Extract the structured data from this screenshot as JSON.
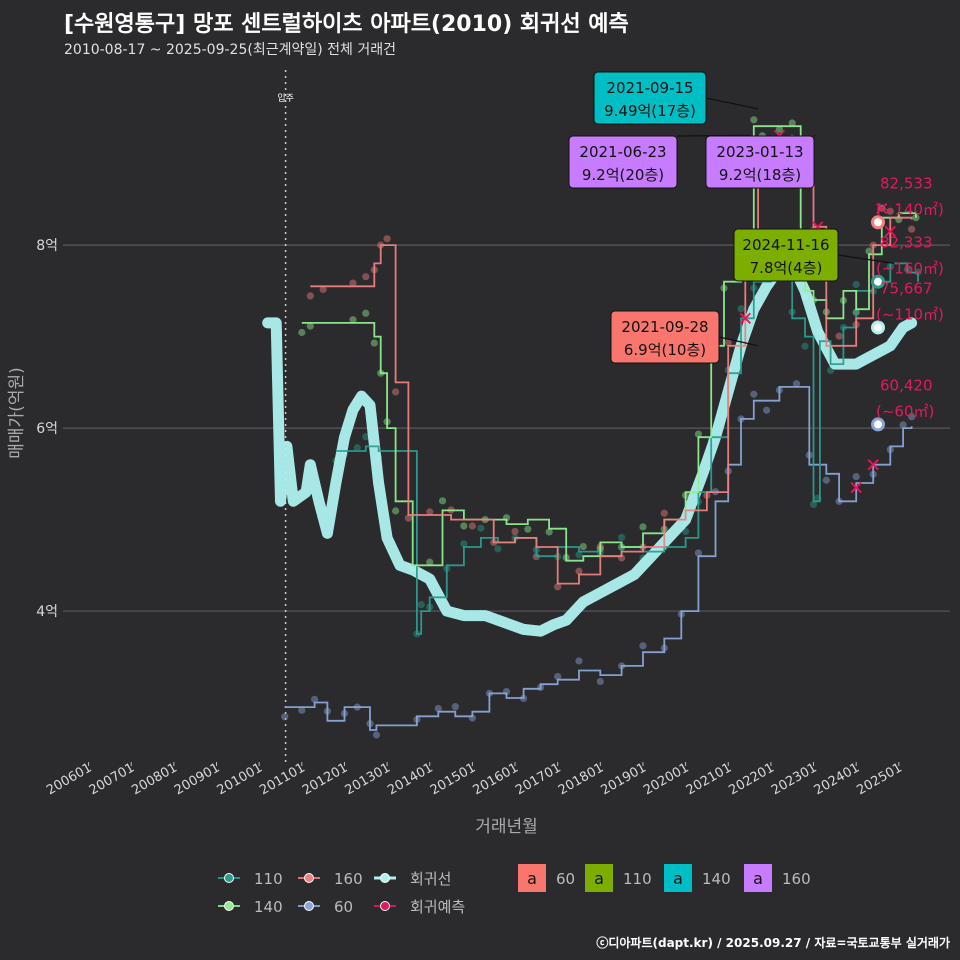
{
  "title": "[수원영통구] 망포 센트럴하이츠 아파트(2010) 회귀선 예측",
  "subtitle": "2010-08-17 ~ 2025-09-25(최근계약일) 전체 거래건",
  "credit": "ⓒ디아파트(dapt.kr) / 2025.09.27 / 자료=국토교통부 실거래가",
  "colors": {
    "bg": "#2b2b2d",
    "grid": "#5a5a5c",
    "s110": "#2a9d8f",
    "s140": "#90ee90",
    "s160": "#f08080",
    "s60": "#8aa6d8",
    "reg": "#aef2f0",
    "pred": "#e8175d",
    "lab60": "#f8766d",
    "lab110": "#7cae00",
    "lab140": "#00bfc4",
    "lab160": "#c77cff"
  },
  "chart_data": {
    "type": "line",
    "xlabel": "거래년월",
    "ylabel": "매매가(억원)",
    "xlim": [
      2005.4,
      2026.2
    ],
    "ylim": [
      2.35,
      9.98
    ],
    "x_ticks": [
      {
        "x": 2006.0,
        "label": "200601"
      },
      {
        "x": 2007.0,
        "label": "200701"
      },
      {
        "x": 2008.0,
        "label": "200801"
      },
      {
        "x": 2009.0,
        "label": "200901"
      },
      {
        "x": 2010.0,
        "label": "201001"
      },
      {
        "x": 2011.0,
        "label": "201101"
      },
      {
        "x": 2012.0,
        "label": "201201"
      },
      {
        "x": 2013.0,
        "label": "201301"
      },
      {
        "x": 2014.0,
        "label": "201401"
      },
      {
        "x": 2015.0,
        "label": "201501"
      },
      {
        "x": 2016.0,
        "label": "201601"
      },
      {
        "x": 2017.0,
        "label": "201701"
      },
      {
        "x": 2018.0,
        "label": "201801"
      },
      {
        "x": 2019.0,
        "label": "201901"
      },
      {
        "x": 2020.0,
        "label": "202001"
      },
      {
        "x": 2021.0,
        "label": "202101"
      },
      {
        "x": 2022.0,
        "label": "202201"
      },
      {
        "x": 2023.0,
        "label": "202301"
      },
      {
        "x": 2024.0,
        "label": "202401"
      },
      {
        "x": 2025.0,
        "label": "202501"
      }
    ],
    "y_ticks": [
      {
        "y": 4,
        "label": "4억"
      },
      {
        "y": 6,
        "label": "6억"
      },
      {
        "y": 8,
        "label": "8억"
      }
    ],
    "move_in": {
      "x": 2010.62,
      "label": "입주"
    },
    "series": [
      {
        "name": "60",
        "key": "s60",
        "x": [
          2010.6,
          2011.0,
          2011.3,
          2011.6,
          2012.0,
          2012.3,
          2012.6,
          2012.75,
          2013.7,
          2014.2,
          2014.6,
          2015.0,
          2015.4,
          2015.8,
          2016.2,
          2016.6,
          2017.0,
          2017.5,
          2018.0,
          2018.5,
          2019.0,
          2019.5,
          2019.9,
          2020.3,
          2020.7,
          2021.0,
          2021.3,
          2021.6,
          2021.9,
          2022.2,
          2022.6,
          2022.9,
          2023.3,
          2023.6,
          2024.0,
          2024.4,
          2024.8,
          2025.1,
          2025.3
        ],
        "values": [
          2.95,
          2.95,
          3.0,
          2.8,
          2.95,
          2.95,
          2.7,
          2.75,
          2.85,
          2.9,
          2.85,
          2.9,
          3.1,
          3.05,
          3.15,
          3.2,
          3.25,
          3.35,
          3.3,
          3.4,
          3.55,
          3.7,
          4.0,
          4.6,
          5.2,
          5.6,
          6.1,
          6.3,
          6.3,
          6.45,
          6.45,
          5.6,
          5.5,
          5.2,
          5.4,
          5.6,
          5.8,
          6.0,
          6.02
        ]
      },
      {
        "name": "110",
        "key": "s110",
        "x": [
          2011.8,
          2012.0,
          2012.3,
          2012.5,
          2012.8,
          2013.7,
          2013.8,
          2014.0,
          2014.4,
          2014.8,
          2015.2,
          2015.6,
          2016.0,
          2016.5,
          2017.0,
          2017.5,
          2018.0,
          2018.5,
          2019.0,
          2019.5,
          2020.0,
          2020.3,
          2020.6,
          2021.0,
          2021.3,
          2021.6,
          2022.0,
          2022.5,
          2022.8,
          2023.0,
          2023.1,
          2023.15,
          2023.4,
          2023.7,
          2024.0,
          2024.4,
          2024.8,
          2025.2,
          2025.45
        ],
        "values": [
          5.75,
          5.75,
          5.75,
          5.8,
          5.75,
          3.75,
          4.0,
          4.15,
          4.5,
          4.7,
          4.8,
          4.75,
          4.8,
          4.6,
          4.7,
          4.65,
          4.6,
          4.7,
          4.65,
          4.7,
          4.8,
          5.3,
          5.9,
          6.6,
          7.2,
          7.6,
          7.8,
          7.2,
          7.0,
          5.2,
          5.2,
          6.95,
          6.7,
          7.1,
          7.5,
          7.6,
          7.8,
          7.7,
          7.6
        ]
      },
      {
        "name": "140",
        "key": "s140",
        "x": [
          2011.0,
          2011.2,
          2012.2,
          2012.5,
          2012.7,
          2012.85,
          2013.0,
          2013.2,
          2013.6,
          2014.0,
          2014.3,
          2014.8,
          2015.3,
          2015.8,
          2016.3,
          2016.8,
          2017.2,
          2017.6,
          2018.0,
          2018.5,
          2019.0,
          2019.5,
          2020.0,
          2020.3,
          2020.6,
          2020.9,
          2021.3,
          2021.6,
          2021.8,
          2022.2,
          2022.5,
          2022.7,
          2022.8,
          2023.0,
          2023.3,
          2023.7,
          2024.0,
          2024.3,
          2024.6,
          2025.0,
          2025.4
        ],
        "values": [
          7.15,
          7.15,
          7.15,
          7.15,
          7.0,
          6.6,
          6.0,
          5.2,
          4.5,
          4.5,
          5.1,
          5.0,
          5.0,
          4.95,
          5.0,
          4.9,
          4.55,
          4.6,
          4.75,
          4.7,
          4.85,
          5.0,
          5.3,
          5.9,
          6.9,
          7.6,
          8.1,
          9.3,
          9.3,
          9.3,
          9.3,
          7.8,
          7.5,
          7.4,
          7.2,
          7.5,
          7.3,
          7.9,
          8.3,
          8.35,
          8.3
        ]
      },
      {
        "name": "160",
        "key": "s160",
        "x": [
          2011.2,
          2011.5,
          2012.2,
          2012.5,
          2012.7,
          2012.85,
          2013.0,
          2013.2,
          2013.5,
          2014.0,
          2014.5,
          2015.0,
          2015.5,
          2016.0,
          2016.5,
          2017.0,
          2017.5,
          2018.0,
          2018.5,
          2019.0,
          2019.5,
          2020.0,
          2020.5,
          2021.0,
          2021.4,
          2021.7,
          2022.0,
          2022.5,
          2022.8,
          2023.0,
          2023.3,
          2023.6,
          2024.0,
          2024.4,
          2024.8,
          2025.3
        ],
        "values": [
          7.55,
          7.55,
          7.55,
          7.55,
          7.8,
          8.0,
          8.0,
          6.5,
          5.05,
          5.05,
          5.0,
          5.0,
          4.75,
          4.8,
          4.7,
          4.3,
          4.4,
          4.6,
          4.65,
          4.7,
          5.0,
          5.1,
          5.3,
          6.9,
          8.0,
          9.1,
          9.1,
          9.1,
          9.0,
          8.2,
          6.9,
          6.9,
          7.2,
          8.0,
          8.3,
          8.28
        ]
      },
      {
        "name": "회귀선",
        "key": "reg",
        "x": [
          2010.2,
          2010.4,
          2010.5,
          2010.65,
          2010.8,
          2011.1,
          2011.2,
          2011.4,
          2011.6,
          2011.8,
          2012.0,
          2012.2,
          2012.4,
          2012.6,
          2012.8,
          2013.0,
          2013.3,
          2013.6,
          2014.0,
          2014.4,
          2014.8,
          2015.0,
          2015.3,
          2015.6,
          2015.9,
          2016.2,
          2016.6,
          2016.9,
          2017.2,
          2017.6,
          2018.0,
          2018.4,
          2018.8,
          2019.2,
          2019.6,
          2020.0,
          2020.4,
          2020.7,
          2021.0,
          2021.3,
          2021.6,
          2021.9,
          2022.2,
          2022.5,
          2022.8,
          2023.1,
          2023.5,
          2024.0,
          2024.4,
          2024.8,
          2025.1,
          2025.3
        ],
        "values": [
          7.15,
          7.15,
          5.2,
          5.8,
          5.2,
          5.3,
          5.6,
          5.2,
          4.85,
          5.4,
          5.9,
          6.2,
          6.35,
          6.25,
          5.4,
          4.8,
          4.5,
          4.45,
          4.35,
          4.0,
          3.95,
          3.95,
          3.95,
          3.9,
          3.85,
          3.8,
          3.78,
          3.85,
          3.9,
          4.1,
          4.2,
          4.3,
          4.4,
          4.6,
          4.8,
          5.0,
          5.5,
          5.9,
          6.4,
          6.9,
          7.3,
          7.55,
          7.75,
          7.8,
          7.5,
          7.05,
          6.7,
          6.7,
          6.8,
          6.9,
          7.1,
          7.15
        ]
      },
      {
        "name": "회귀예측",
        "key": "pred",
        "x": [
          2021.4,
          2022.2,
          2023.1,
          2024.0,
          2024.4,
          2024.6,
          2024.8
        ],
        "values": [
          7.2,
          9.2,
          8.2,
          5.35,
          5.6,
          8.4,
          8.15
        ]
      }
    ],
    "callouts": [
      {
        "date": "2021-09-15",
        "price": "9.49억(17층)",
        "x": 2021.7,
        "y": 9.49,
        "color": "lab140",
        "text": "#111111"
      },
      {
        "date": "2021-06-23",
        "price": "9.2억(20층)",
        "x": 2021.5,
        "y": 9.2,
        "color": "lab160",
        "text": "#111111"
      },
      {
        "date": "2023-01-13",
        "price": "9.2억(18층)",
        "x": 2023.04,
        "y": 9.2,
        "color": "lab160",
        "text": "#111111"
      },
      {
        "date": "2024-11-16",
        "price": "7.8억(4층)",
        "x": 2024.9,
        "y": 7.8,
        "color": "lab110",
        "text": "#111111"
      },
      {
        "date": "2021-09-28",
        "price": "6.9억(10층)",
        "x": 2021.7,
        "y": 6.9,
        "color": "lab60",
        "text": "#111111"
      }
    ],
    "end_labels": [
      {
        "value": "82,533",
        "sub": "(~140㎡)",
        "y": 8.25,
        "key": "s160"
      },
      {
        "value": "82,333",
        "sub": "(~160㎡)",
        "y": 7.6,
        "key": "s110"
      },
      {
        "value": "75,667",
        "sub": "(~110㎡)",
        "y": 7.1,
        "key": "reg"
      },
      {
        "value": "60,420",
        "sub": "(~60㎡)",
        "y": 6.04,
        "key": "s60"
      }
    ],
    "legend": {
      "lines": [
        {
          "label": "110",
          "key": "s110"
        },
        {
          "label": "160",
          "key": "s160"
        },
        {
          "label": "회귀선",
          "key": "reg"
        },
        {
          "label": "140",
          "key": "s140"
        },
        {
          "label": "60",
          "key": "s60"
        },
        {
          "label": "회귀예측",
          "key": "pred"
        }
      ],
      "boxes": [
        {
          "glyph": "a",
          "label": "60",
          "key": "lab60"
        },
        {
          "glyph": "a",
          "label": "110",
          "key": "lab110"
        },
        {
          "glyph": "a",
          "label": "140",
          "key": "lab140"
        },
        {
          "glyph": "a",
          "label": "160",
          "key": "lab160"
        }
      ]
    }
  }
}
